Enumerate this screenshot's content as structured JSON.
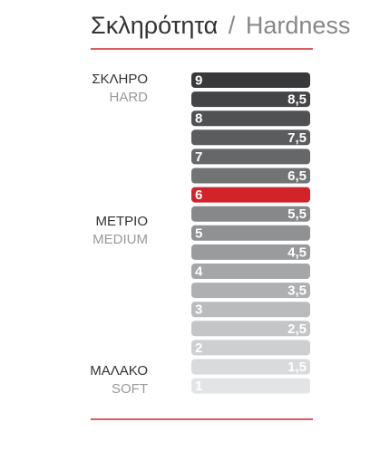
{
  "title": {
    "greek": "Σκληρότητα",
    "separator": "/",
    "english": "Hardness"
  },
  "groups": [
    {
      "greek": "ΣΚΛΗΡΟ",
      "english": "HARD"
    },
    {
      "greek": "ΜΕΤΡΙΟ",
      "english": "MEDIUM"
    },
    {
      "greek": "ΜΑΛΑΚΟ",
      "english": "SOFT"
    }
  ],
  "scale": [
    {
      "label": "9",
      "color": "#38393b"
    },
    {
      "label": "8,5",
      "color": "#444547"
    },
    {
      "label": "8",
      "color": "#505153"
    },
    {
      "label": "7,5",
      "color": "#5b5c5e"
    },
    {
      "label": "7",
      "color": "#666769"
    },
    {
      "label": "6,5",
      "color": "#727375"
    },
    {
      "label": "6",
      "color": "#d2232a"
    },
    {
      "label": "5,5",
      "color": "#87888a"
    },
    {
      "label": "5",
      "color": "#909193"
    },
    {
      "label": "4,5",
      "color": "#9a9b9d"
    },
    {
      "label": "4",
      "color": "#a5a6a8"
    },
    {
      "label": "3,5",
      "color": "#afb0b2"
    },
    {
      "label": "3",
      "color": "#babbbd"
    },
    {
      "label": "2,5",
      "color": "#c4c5c7"
    },
    {
      "label": "2",
      "color": "#cecfd1"
    },
    {
      "label": "1,5",
      "color": "#d9dadc"
    },
    {
      "label": "1",
      "color": "#e3e4e6"
    }
  ]
}
